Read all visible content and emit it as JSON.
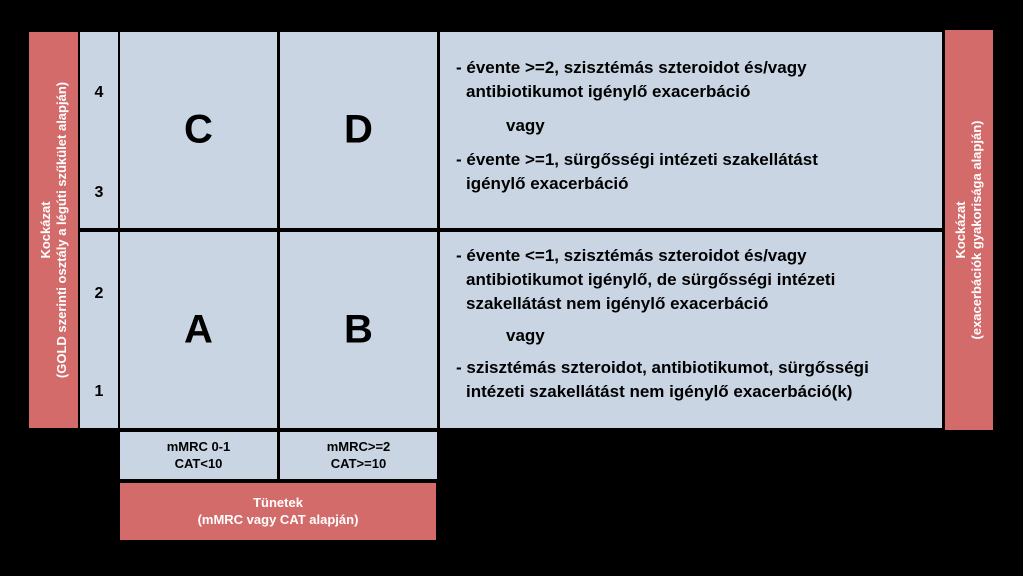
{
  "left_axis": {
    "line1": "Kockázat",
    "line2": "(GOLD szerinti osztály a légúti szűkület alapján)"
  },
  "right_axis": {
    "line1": "Kockázat",
    "line2": "(exacerbációk gyakorisága alapján)"
  },
  "gold_numbers": [
    "4",
    "3",
    "2",
    "1"
  ],
  "groups": {
    "C": "C",
    "D": "D",
    "A": "A",
    "B": "B"
  },
  "top_description": {
    "item1_line1": "- évente >=2, szisztémás szteroidot és/vagy",
    "item1_line2": "antibiotikumot igénylő exacerbáció",
    "or": "vagy",
    "item2_line1": "- évente >=1, sürgősségi intézeti szakellátást",
    "item2_line2": "igénylő exacerbáció"
  },
  "bottom_description": {
    "item1_line1": "- évente <=1, szisztémás szteroidot és/vagy",
    "item1_line2": "antibiotikumot igénylő, de sürgősségi intézeti",
    "item1_line3": "szakellátást nem igénylő exacerbáció",
    "or": "vagy",
    "item2_line1": "- szisztémás szteroidot, antibiotikumot, sürgősségi",
    "item2_line2": "intézeti szakellátást nem igénylő exacerbáció(k)"
  },
  "symptom_columns": {
    "left_line1": "mMRC 0-1",
    "left_line2": "CAT<10",
    "right_line1": "mMRC>=2",
    "right_line2": "CAT>=10"
  },
  "symptoms_label": {
    "line1": "Tünetek",
    "line2": "(mMRC vagy CAT alapján)"
  },
  "colors": {
    "cell_fill": "#c9d5e3",
    "label_fill": "#d46b6b",
    "background": "#000000"
  }
}
